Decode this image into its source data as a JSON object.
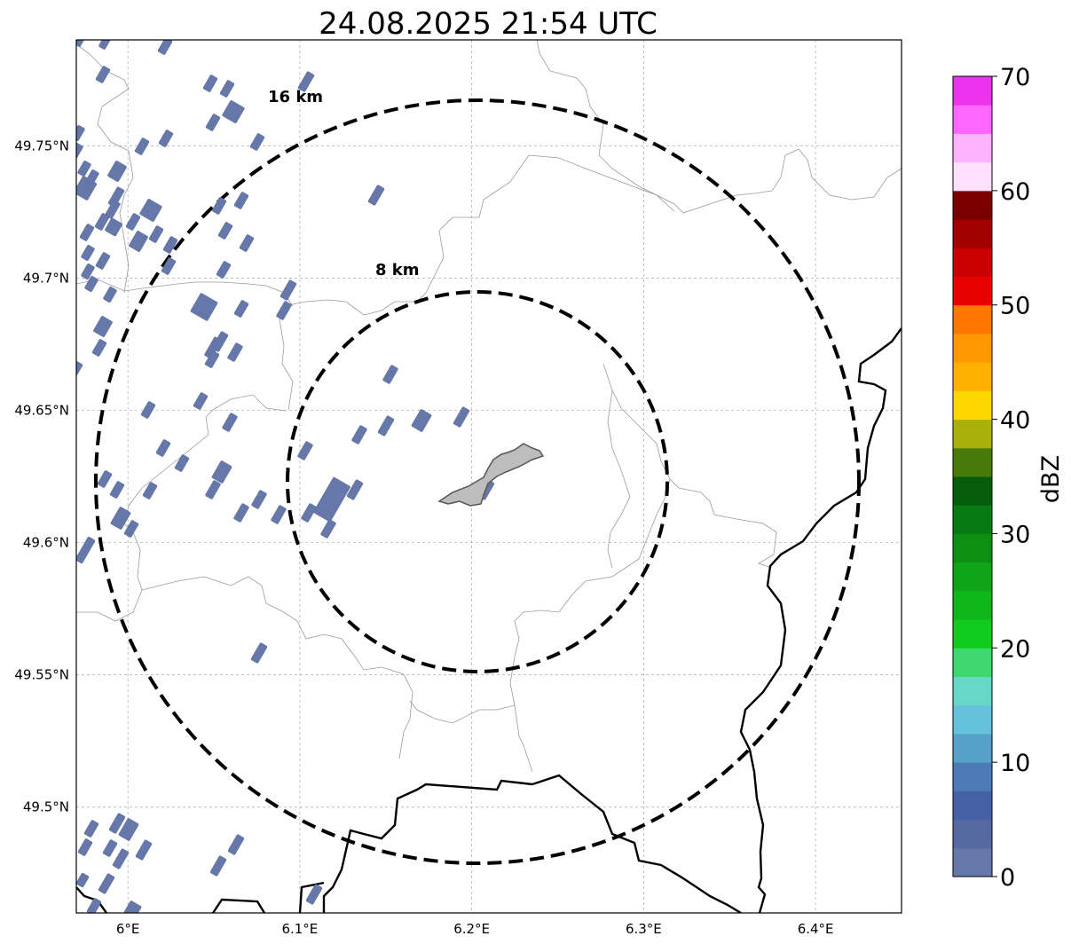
{
  "map": {
    "title": "24.08.2025 21:54 UTC",
    "lon_ticks": [
      {
        "value": 6.0,
        "label": "6°E"
      },
      {
        "value": 6.1,
        "label": "6.1°E"
      },
      {
        "value": 6.2,
        "label": "6.2°E"
      },
      {
        "value": 6.3,
        "label": "6.3°E"
      },
      {
        "value": 6.4,
        "label": "6.4°E"
      }
    ],
    "lat_ticks": [
      {
        "value": 49.75,
        "label": "49.75°N"
      },
      {
        "value": 49.7,
        "label": "49.7°N"
      },
      {
        "value": 49.65,
        "label": "49.65°N"
      },
      {
        "value": 49.6,
        "label": "49.6°N"
      },
      {
        "value": 49.55,
        "label": "49.55°N"
      },
      {
        "value": 49.5,
        "label": "49.5°N"
      }
    ],
    "rings": [
      {
        "radius_km": 8,
        "label": "8 km"
      },
      {
        "radius_km": 16,
        "label": "16 km"
      }
    ],
    "center": {
      "lon": 6.203,
      "lat": 49.623
    },
    "extent": {
      "lon_min": 5.97,
      "lon_max": 6.45,
      "lat_min": 49.46,
      "lat_max": 49.79
    },
    "echo_color": "#6677aa",
    "city_fill": "#bbbbbb"
  },
  "colorbar": {
    "label": "dBZ",
    "min": 0,
    "max": 70,
    "step": 2.5,
    "tick_values": [
      "0",
      "10",
      "20",
      "30",
      "40",
      "50",
      "60",
      "70"
    ],
    "colors": [
      "#6677aa",
      "#5568a0",
      "#4461a6",
      "#4d7bb5",
      "#57a0c8",
      "#66c2dc",
      "#66d8c8",
      "#3dd870",
      "#12cc1d",
      "#0fb81a",
      "#0ea516",
      "#0c9014",
      "#077a12",
      "#055c0a",
      "#477a0a",
      "#aab00a",
      "#ffd700",
      "#ffb000",
      "#ff9800",
      "#ff7700",
      "#e60000",
      "#c80000",
      "#a00000",
      "#7a0000",
      "#ffe0ff",
      "#ffb3ff",
      "#ff66ff",
      "#ee33ee"
    ]
  }
}
